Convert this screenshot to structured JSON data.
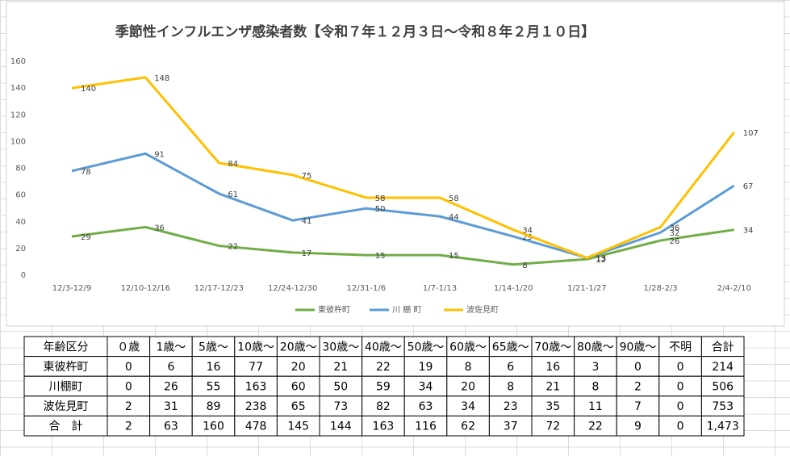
{
  "chart_data": {
    "type": "line",
    "title": "季節性インフルエンザ感染者数【令和７年１２月３日～令和８年２月１０日】",
    "categories": [
      "12/3-12/9",
      "12/10-12/16",
      "12/17-12/23",
      "12/24-12/30",
      "12/31-1/6",
      "1/7-1/13",
      "1/14-1/20",
      "1/21-1/27",
      "1/28-2/3",
      "2/4-2/10"
    ],
    "series": [
      {
        "name": "東彼杵町",
        "color": "#70ad47",
        "values": [
          29,
          36,
          22,
          17,
          15,
          15,
          8,
          12,
          26,
          34
        ]
      },
      {
        "name": "川 棚 町",
        "color": "#5b9bd5",
        "values": [
          78,
          91,
          61,
          41,
          50,
          44,
          29,
          13,
          32,
          67
        ]
      },
      {
        "name": "波佐見町",
        "color": "#ffc000",
        "values": [
          140,
          148,
          84,
          75,
          58,
          58,
          34,
          13,
          36,
          107
        ]
      }
    ],
    "ylim": [
      0,
      160
    ],
    "yticks": [
      0,
      20,
      40,
      60,
      80,
      100,
      120,
      140,
      160
    ],
    "grid": false,
    "legend": "bottom",
    "data_labels": true
  },
  "table": {
    "header": [
      "年齢区分",
      "０歳",
      "1歳～",
      "5歳～",
      "10歳～",
      "20歳～",
      "30歳～",
      "40歳～",
      "50歳～",
      "60歳～",
      "65歳～",
      "70歳～",
      "80歳～",
      "90歳～",
      "不明",
      "合計"
    ],
    "rows": [
      [
        "東彼杵町",
        "0",
        "6",
        "16",
        "77",
        "20",
        "21",
        "22",
        "19",
        "8",
        "6",
        "16",
        "3",
        "0",
        "0",
        "214"
      ],
      [
        "川棚町",
        "0",
        "26",
        "55",
        "163",
        "60",
        "50",
        "59",
        "34",
        "20",
        "8",
        "21",
        "8",
        "2",
        "0",
        "506"
      ],
      [
        "波佐見町",
        "2",
        "31",
        "89",
        "238",
        "65",
        "73",
        "82",
        "63",
        "34",
        "23",
        "35",
        "11",
        "7",
        "0",
        "753"
      ],
      [
        "合　計",
        "2",
        "63",
        "160",
        "478",
        "145",
        "144",
        "163",
        "116",
        "62",
        "37",
        "72",
        "22",
        "9",
        "0",
        "1,473"
      ]
    ]
  }
}
